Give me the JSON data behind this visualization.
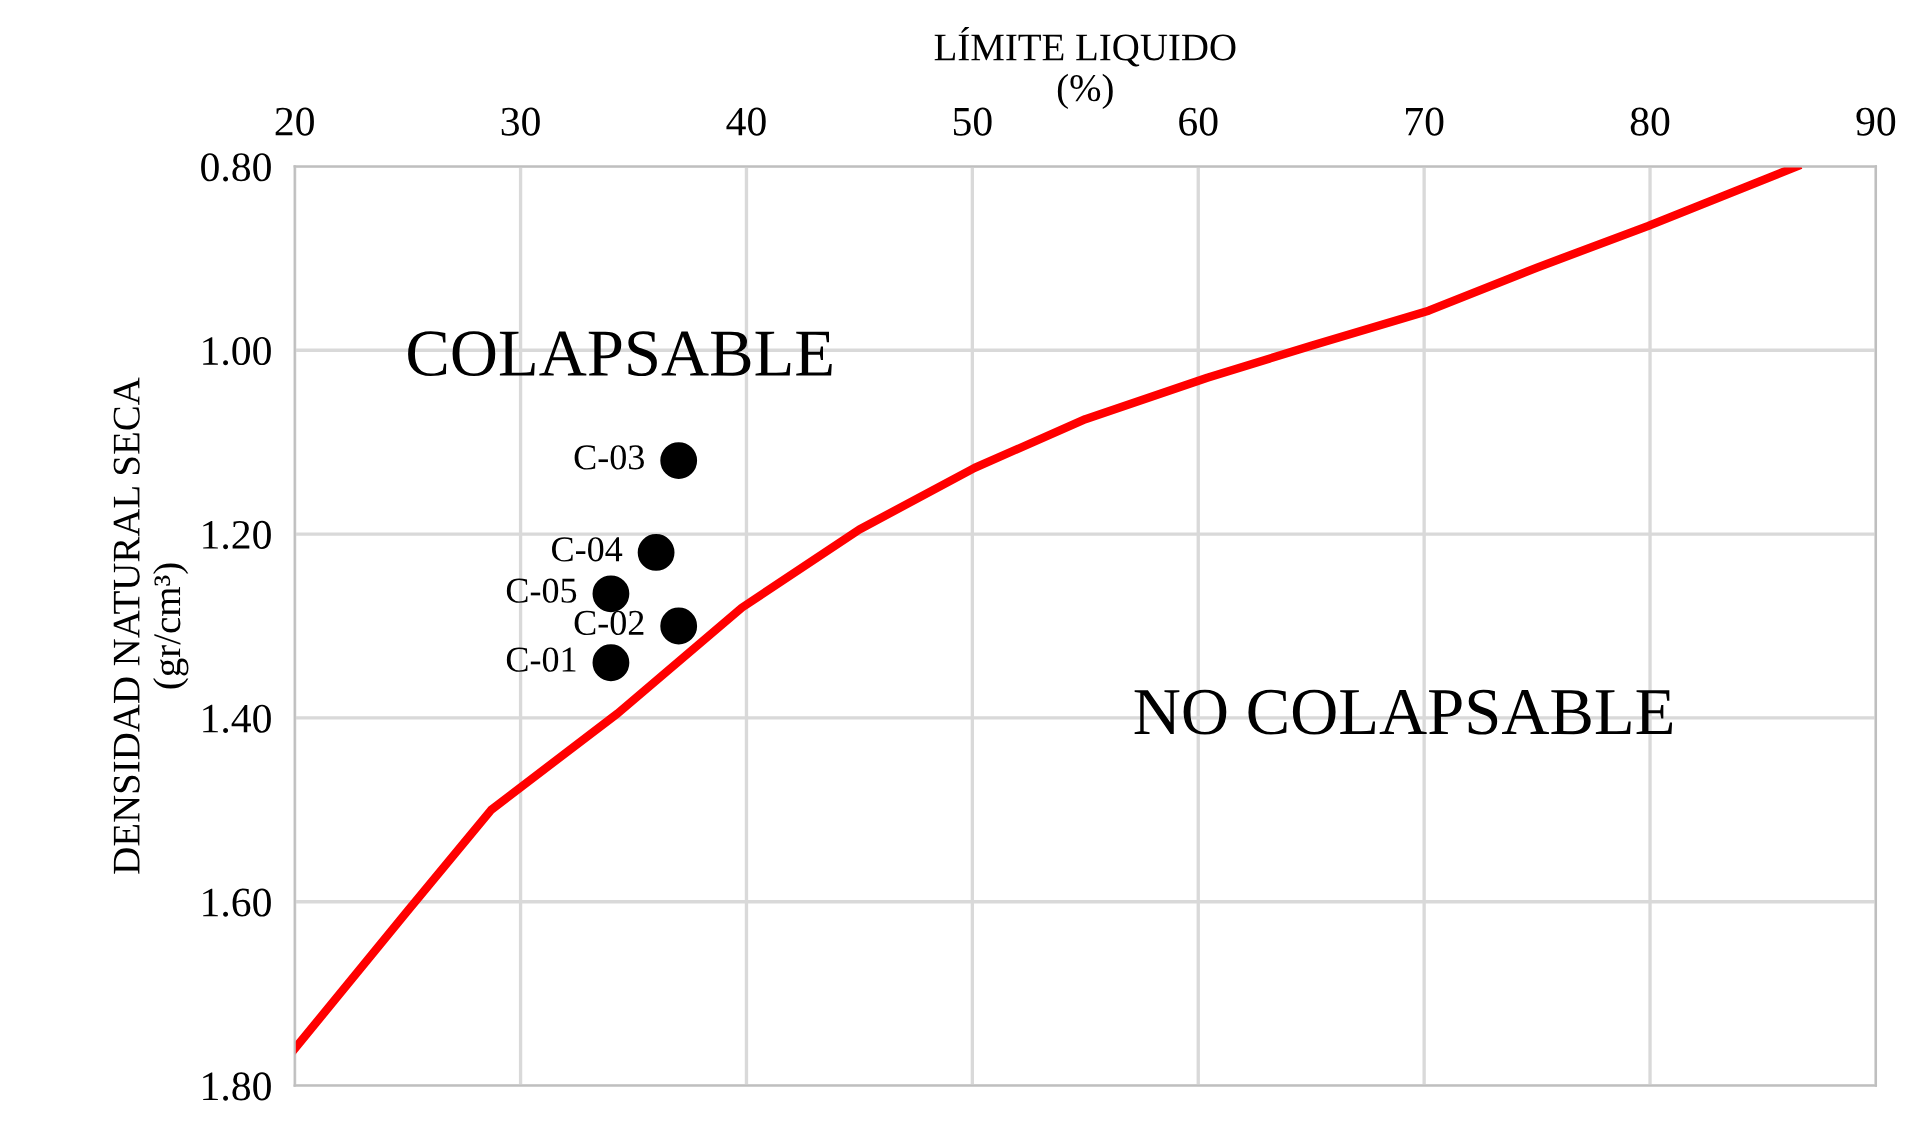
{
  "chart_data": {
    "type": "scatter",
    "xlabel": "LÍMITE LIQUIDO\n(%)",
    "ylabel": "DENSIDAD NATURAL SECA\n(gr/cm³)",
    "xlim": [
      20,
      90
    ],
    "xticks": [
      20,
      30,
      40,
      50,
      60,
      70,
      80,
      90
    ],
    "ylim": [
      1.8,
      0.8
    ],
    "yticks": [
      {
        "value": 0.8,
        "label": "0.80"
      },
      {
        "value": 1.0,
        "label": "1.00"
      },
      {
        "value": 1.2,
        "label": "1.20"
      },
      {
        "value": 1.4,
        "label": "1.40"
      },
      {
        "value": 1.6,
        "label": "1.60"
      },
      {
        "value": 1.8,
        "label": "1.80"
      }
    ],
    "grid": true,
    "legend": false,
    "series": [
      {
        "type": "line",
        "color": "#ff0000",
        "marker": "none",
        "line_style": "solid",
        "x": [
          20,
          25,
          28.7,
          34.3,
          39.8,
          45,
          50.1,
          55,
          60.4,
          65,
          70.2,
          75,
          79.9,
          86.5
        ],
        "values": [
          1.76,
          1.61,
          1.5,
          1.395,
          1.28,
          1.195,
          1.128,
          1.075,
          1.03,
          0.995,
          0.957,
          0.91,
          0.865,
          0.8
        ]
      },
      {
        "color": "#000000",
        "marker": "circle",
        "x": [
          34,
          37,
          37,
          36,
          34
        ],
        "values": [
          1.34,
          1.3,
          1.12,
          1.22,
          1.265
        ],
        "value_labels": [
          "C-01",
          "C-02",
          "C-03",
          "C-04",
          "C-05"
        ]
      }
    ],
    "annotations": [
      "COLAPSABLE",
      "NO COLAPSABLE"
    ]
  }
}
